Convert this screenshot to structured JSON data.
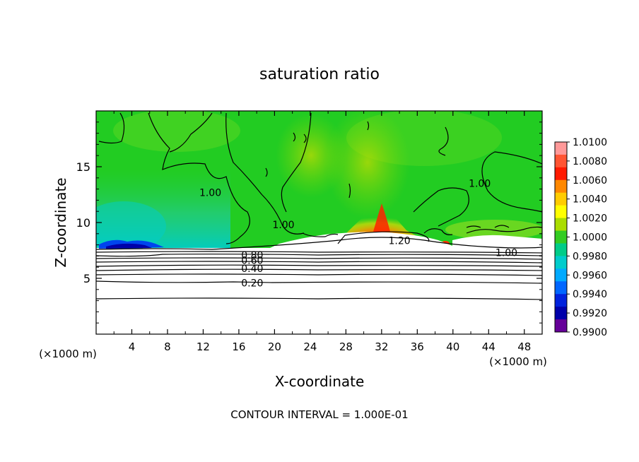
{
  "chart_data": {
    "type": "heatmap",
    "title": "saturation ratio",
    "xlabel": "X-coordinate",
    "ylabel": "Z-coordinate",
    "x_unit": "(×1000 m)",
    "x_unit_right": "(×1000 m)",
    "xlim": [
      0,
      50
    ],
    "ylim": [
      0,
      20
    ],
    "x_ticks": [
      4,
      8,
      12,
      16,
      20,
      24,
      28,
      32,
      36,
      40,
      44,
      48
    ],
    "y_ticks": [
      5,
      10,
      15
    ],
    "colorbar": {
      "labels": [
        "1.0100",
        "1.0080",
        "1.0060",
        "1.0040",
        "1.0020",
        "1.0000",
        "0.9980",
        "0.9960",
        "0.9940",
        "0.9920",
        "0.9900"
      ],
      "colors": [
        "#ff9999",
        "#ff5533",
        "#ff1a00",
        "#ff8800",
        "#ffcc00",
        "#ffff00",
        "#aadd00",
        "#33cc22",
        "#00cc88",
        "#00cccc",
        "#00aaff",
        "#0066ff",
        "#0022dd",
        "#0000aa",
        "#660099"
      ]
    },
    "contour_labels": [
      {
        "text": "0.20",
        "x": 17.5,
        "z": 4.6
      },
      {
        "text": "0.40",
        "x": 17.5,
        "z": 5.9
      },
      {
        "text": "0.60",
        "x": 17.5,
        "z": 6.6
      },
      {
        "text": "0.80",
        "x": 17.5,
        "z": 7.1
      },
      {
        "text": "1.00",
        "x": 12.8,
        "z": 12.7
      },
      {
        "text": "1.00",
        "x": 21.0,
        "z": 9.8
      },
      {
        "text": "1.00",
        "x": 43.0,
        "z": 13.5
      },
      {
        "text": "1.00",
        "x": 46.0,
        "z": 7.3
      },
      {
        "text": "1.20",
        "x": 34.0,
        "z": 8.4
      }
    ],
    "contour_interval_text": "CONTOUR INTERVAL = 1.000E-01"
  }
}
